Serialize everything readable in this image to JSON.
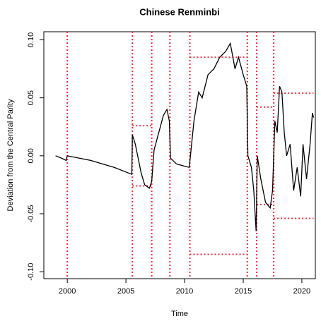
{
  "chart_data": {
    "type": "line",
    "title": "Chinese Renminbi",
    "x_label": "Time",
    "y_label": "Deviation from the Central Parity",
    "x": [
      1999.0,
      1999.5,
      1999.9,
      2000.0,
      2000.5,
      2001.0,
      2002.0,
      2003.0,
      2004.0,
      2005.0,
      2005.5,
      2005.55,
      2005.8,
      2006.0,
      2006.3,
      2006.6,
      2007.0,
      2007.2,
      2007.4,
      2007.8,
      2008.2,
      2008.5,
      2008.7,
      2008.8,
      2009.3,
      2010.0,
      2010.4,
      2010.5,
      2010.8,
      2011.2,
      2011.5,
      2012.0,
      2012.5,
      2013.0,
      2013.5,
      2013.9,
      2014.3,
      2014.6,
      2015.0,
      2015.3,
      2015.4,
      2015.7,
      2015.9,
      2016.1,
      2016.2,
      2016.5,
      2016.9,
      2017.3,
      2017.5,
      2017.7,
      2017.9,
      2018.1,
      2018.3,
      2018.5,
      2018.7,
      2019.0,
      2019.3,
      2019.6,
      2019.9,
      2020.1,
      2020.4,
      2020.7,
      2020.9,
      2021.0
    ],
    "series": [
      {
        "color": "#000000",
        "values": [
          0.0,
          -0.002,
          -0.004,
          0.0,
          -0.001,
          -0.002,
          -0.004,
          -0.007,
          -0.01,
          -0.014,
          -0.016,
          0.018,
          0.01,
          0.0,
          -0.015,
          -0.025,
          -0.028,
          -0.022,
          0.005,
          0.02,
          0.035,
          0.04,
          0.03,
          -0.002,
          -0.007,
          -0.009,
          -0.01,
          0.0,
          0.03,
          0.055,
          0.05,
          0.07,
          0.075,
          0.085,
          0.09,
          0.097,
          0.075,
          0.085,
          0.07,
          0.06,
          0.0,
          -0.01,
          -0.03,
          -0.065,
          0.0,
          -0.02,
          -0.04,
          -0.045,
          -0.03,
          0.03,
          0.02,
          0.06,
          0.055,
          0.02,
          0.0,
          0.01,
          -0.03,
          -0.01,
          -0.035,
          0.01,
          -0.02,
          0.01,
          0.037,
          0.033
        ]
      }
    ],
    "vlines": [
      2000.0,
      2005.55,
      2007.2,
      2008.75,
      2010.45,
      2015.35,
      2016.15,
      2017.6
    ],
    "bands": [
      {
        "x0": 2005.55,
        "x1": 2007.2,
        "upper": 0.026,
        "lower": -0.026
      },
      {
        "x0": 2010.45,
        "x1": 2015.35,
        "upper": 0.085,
        "lower": -0.085
      },
      {
        "x0": 2016.15,
        "x1": 2017.6,
        "upper": 0.042,
        "lower": -0.042
      },
      {
        "x0": 2017.6,
        "x1": 2021.0,
        "upper": 0.054,
        "lower": -0.054
      }
    ],
    "band_color": "#ff2a3a",
    "xlim": [
      1998.0,
      2021.15
    ],
    "ylim": [
      -0.106,
      0.107
    ],
    "xticks": [
      2000,
      2005,
      2010,
      2015,
      2020
    ],
    "yticks": [
      {
        "value": -0.1,
        "label": "-0.10"
      },
      {
        "value": -0.05,
        "label": "-0.05"
      },
      {
        "value": 0,
        "label": "0.00"
      },
      {
        "value": 0.05,
        "label": "0.05"
      },
      {
        "value": 0.1,
        "label": "0.10"
      }
    ]
  }
}
